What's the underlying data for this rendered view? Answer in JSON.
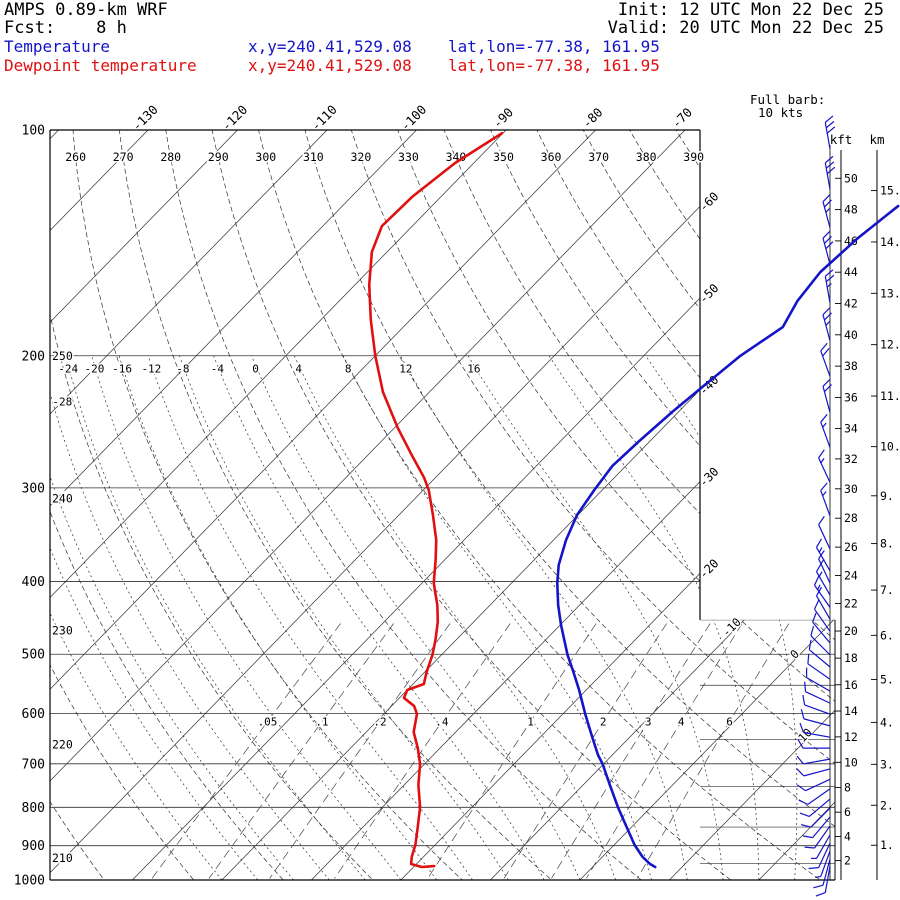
{
  "header": {
    "model": "AMPS 0.89-km WRF",
    "fcst": "Fcst:    8 h",
    "init": "Init: 12 UTC Mon 22 Dec 25",
    "valid": "Valid: 20 UTC Mon 22 Dec 25",
    "temp_label": "Temperature",
    "temp_xy": "x,y=240.41,529.08",
    "temp_latlon": "lat,lon=-77.38, 161.95",
    "dewp_label": "Dewpoint temperature",
    "dewp_xy": "x,y=240.41,529.08",
    "dewp_latlon": "lat,lon=-77.38, 161.95"
  },
  "barb_legend": {
    "line1": "Full barb:",
    "line2": "10 kts"
  },
  "colors": {
    "temperature": "#1414c8",
    "dewpoint": "#e01010",
    "wind": "#1414c8",
    "grid": "#303030",
    "text": "#000000"
  },
  "chart_data": {
    "type": "skewt",
    "title": "AMPS 0.89-km WRF sounding skew-T log-P",
    "pressure_ticks": [
      100,
      200,
      300,
      400,
      500,
      600,
      700,
      800,
      900,
      1000
    ],
    "isotherm": {
      "min": -140,
      "max": 30,
      "step": 10,
      "top_labels": [
        -130,
        -120,
        -110,
        -100,
        -90,
        -80,
        -70
      ],
      "right_labels": [
        -60,
        -50,
        -40,
        -30,
        -20
      ],
      "inline_labels": [
        -10,
        0,
        10
      ]
    },
    "dry_adiabats": {
      "min": 200,
      "max": 390,
      "step": 10,
      "top_labels": [
        260,
        270,
        280,
        290,
        300,
        310,
        320,
        330,
        340,
        350,
        360,
        370,
        380,
        390
      ],
      "left_labels": [
        {
          "theta": 250,
          "p": 200
        },
        {
          "theta": 240,
          "p": 310
        },
        {
          "theta": 230,
          "p": 465
        },
        {
          "theta": 220,
          "p": 660
        },
        {
          "theta": 210,
          "p": 935
        }
      ]
    },
    "moist_adiabats": {
      "t1000_list": [
        -40,
        -36,
        -32,
        -28,
        -24,
        -20,
        -16,
        -12,
        -8,
        -4,
        0,
        4,
        8,
        12,
        16,
        20,
        24
      ],
      "labels_at_200": [
        -24,
        -20,
        -16,
        -12,
        -8,
        -4,
        0,
        4,
        8,
        12,
        16
      ],
      "left_label": {
        "t": -28,
        "p": 230
      }
    },
    "mixing_ratio": {
      "values": [
        0.05,
        0.1,
        0.2,
        0.4,
        1,
        2,
        3,
        4,
        6
      ],
      "labels": [
        ".05",
        ".1",
        ".2",
        ".4",
        "1",
        "2",
        "3",
        "4",
        "6"
      ],
      "label_p": 615
    },
    "height_scale": {
      "kft_title": "kft",
      "km_title": "km",
      "kft_ticks": [
        2,
        4,
        6,
        8,
        10,
        12,
        14,
        16,
        18,
        20,
        22,
        24,
        26,
        28,
        30,
        32,
        34,
        36,
        38,
        40,
        42,
        44,
        46,
        48,
        50
      ],
      "km_ticks": [
        1,
        2,
        3,
        4,
        5,
        6,
        7,
        8,
        9,
        10,
        11,
        12,
        13,
        14,
        15
      ]
    },
    "sounding": {
      "temperature": [
        [
          126.3,
          -37.9
        ],
        [
          139.3,
          -38.9
        ],
        [
          154.7,
          -39.4
        ],
        [
          169.1,
          -38.8
        ],
        [
          183.1,
          -37.6
        ],
        [
          200,
          -39.2
        ],
        [
          218.8,
          -40.0
        ],
        [
          237.7,
          -40.7
        ],
        [
          259.1,
          -41.2
        ],
        [
          280.5,
          -41.5
        ],
        [
          302,
          -40.9
        ],
        [
          326.1,
          -40.1
        ],
        [
          352.2,
          -38.6
        ],
        [
          380.2,
          -36.7
        ],
        [
          401.8,
          -34.9
        ],
        [
          429.9,
          -32.4
        ],
        [
          457.1,
          -29.9
        ],
        [
          483.1,
          -27.5
        ],
        [
          501.2,
          -25.9
        ],
        [
          528,
          -23.4
        ],
        [
          558,
          -20.8
        ],
        [
          600.7,
          -17.5
        ],
        [
          644.8,
          -14.2
        ],
        [
          681.3,
          -11.6
        ],
        [
          700.4,
          -10.1
        ],
        [
          747.1,
          -7.0
        ],
        [
          799.5,
          -3.7
        ],
        [
          852.4,
          -0.4
        ],
        [
          898.1,
          2.3
        ],
        [
          931.8,
          4.5
        ],
        [
          952.1,
          6.1
        ],
        [
          960.9,
          7.0
        ]
      ],
      "dewpoint": [
        [
          101,
          -90.1
        ],
        [
          110.7,
          -92.1
        ],
        [
          122.8,
          -93.2
        ],
        [
          134.3,
          -93.4
        ],
        [
          145.4,
          -91.7
        ],
        [
          160.9,
          -88.4
        ],
        [
          179.2,
          -84.4
        ],
        [
          200,
          -80.0
        ],
        [
          223.5,
          -75.2
        ],
        [
          249.7,
          -69.6
        ],
        [
          271.3,
          -65.1
        ],
        [
          291.1,
          -61.2
        ],
        [
          302,
          -59.4
        ],
        [
          326.1,
          -56.2
        ],
        [
          352.2,
          -53.1
        ],
        [
          374.4,
          -51.0
        ],
        [
          401.8,
          -48.7
        ],
        [
          429.9,
          -45.9
        ],
        [
          452.9,
          -44.0
        ],
        [
          478.6,
          -42.3
        ],
        [
          501.2,
          -41.0
        ],
        [
          528,
          -39.8
        ],
        [
          547.8,
          -38.8
        ],
        [
          558,
          -40.0
        ],
        [
          571.8,
          -39.5
        ],
        [
          586,
          -37.5
        ],
        [
          600.7,
          -36.3
        ],
        [
          634.9,
          -34.7
        ],
        [
          666.8,
          -32.5
        ],
        [
          700.4,
          -30.5
        ],
        [
          747.1,
          -28.4
        ],
        [
          799.5,
          -25.8
        ],
        [
          852.4,
          -23.8
        ],
        [
          898.1,
          -22.2
        ],
        [
          931.8,
          -21.3
        ],
        [
          952.1,
          -20.6
        ],
        [
          960.9,
          -19.1
        ],
        [
          958,
          -17.8
        ]
      ]
    },
    "wind_barbs": [
      [
        106,
        350,
        30
      ],
      [
        120,
        350,
        30
      ],
      [
        135,
        345,
        25
      ],
      [
        151,
        345,
        30
      ],
      [
        170,
        350,
        25
      ],
      [
        191,
        345,
        25
      ],
      [
        213,
        340,
        20
      ],
      [
        238,
        345,
        20
      ],
      [
        265,
        340,
        15
      ],
      [
        295,
        335,
        15
      ],
      [
        327,
        340,
        15
      ],
      [
        362,
        335,
        10
      ],
      [
        387,
        330,
        15
      ],
      [
        402,
        335,
        15
      ],
      [
        417,
        330,
        15
      ],
      [
        433,
        325,
        15
      ],
      [
        449,
        330,
        10
      ],
      [
        466,
        325,
        10
      ],
      [
        483,
        320,
        10
      ],
      [
        501,
        315,
        10
      ],
      [
        520,
        310,
        10
      ],
      [
        540,
        305,
        10
      ],
      [
        560,
        300,
        10
      ],
      [
        581,
        295,
        10
      ],
      [
        601,
        290,
        10
      ],
      [
        623,
        285,
        10
      ],
      [
        645,
        280,
        10
      ],
      [
        667,
        270,
        10
      ],
      [
        690,
        260,
        10
      ],
      [
        711,
        255,
        10
      ],
      [
        734,
        245,
        10
      ],
      [
        756,
        235,
        10
      ],
      [
        780,
        230,
        10
      ],
      [
        802,
        225,
        10
      ],
      [
        824,
        220,
        10
      ],
      [
        847,
        215,
        10
      ],
      [
        871,
        210,
        5
      ],
      [
        893,
        205,
        10
      ],
      [
        915,
        200,
        5
      ],
      [
        938,
        195,
        10
      ],
      [
        958,
        190,
        10
      ]
    ]
  }
}
